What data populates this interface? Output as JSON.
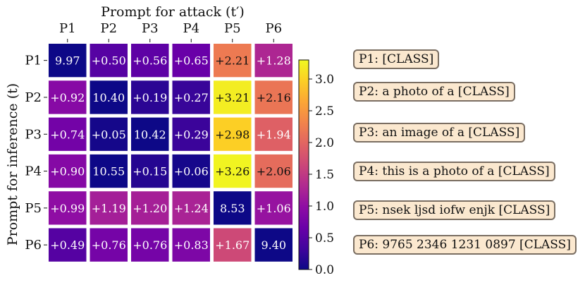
{
  "chart_data": {
    "type": "heatmap",
    "xlabel": "Prompt for attack (t′)",
    "ylabel": "Prompt for inference (t)",
    "columns": [
      "P1",
      "P2",
      "P3",
      "P4",
      "P5",
      "P6"
    ],
    "rows": [
      "P1",
      "P2",
      "P3",
      "P4",
      "P5",
      "P6"
    ],
    "values": [
      [
        9.97,
        0.5,
        0.56,
        0.65,
        2.21,
        1.28
      ],
      [
        0.92,
        10.4,
        0.19,
        0.27,
        3.21,
        2.16
      ],
      [
        0.74,
        0.05,
        10.42,
        0.29,
        2.98,
        1.94
      ],
      [
        0.9,
        10.55,
        0.15,
        0.06,
        3.26,
        2.06
      ],
      [
        0.99,
        1.19,
        1.2,
        1.24,
        8.53,
        1.06
      ],
      [
        0.49,
        0.76,
        0.76,
        0.83,
        1.67,
        9.4
      ]
    ],
    "labels": [
      [
        "9.97",
        "+0.50",
        "+0.56",
        "+0.65",
        "+2.21",
        "+1.28"
      ],
      [
        "+0.92",
        "10.40",
        "+0.19",
        "+0.27",
        "+3.21",
        "+2.16"
      ],
      [
        "+0.74",
        "+0.05",
        "10.42",
        "+0.29",
        "+2.98",
        "+1.94"
      ],
      [
        "+0.90",
        "10.55",
        "+0.15",
        "+0.06",
        "+3.26",
        "+2.06"
      ],
      [
        "+0.99",
        "+1.19",
        "+1.20",
        "+1.24",
        "8.53",
        "+1.06"
      ],
      [
        "+0.49",
        "+0.76",
        "+0.76",
        "+0.83",
        "+1.67",
        "9.40"
      ]
    ],
    "diagonal_cells": [
      [
        0,
        0
      ],
      [
        1,
        1
      ],
      [
        2,
        2
      ],
      [
        3,
        1
      ],
      [
        4,
        4
      ],
      [
        5,
        5
      ]
    ],
    "colorbar": {
      "colormap": "plasma",
      "range": [
        0.0,
        3.3
      ],
      "ticks": [
        0.0,
        0.5,
        1.0,
        1.5,
        2.0,
        2.5,
        3.0
      ],
      "tick_labels": [
        "0.0",
        "0.5",
        "1.0",
        "1.5",
        "2.0",
        "2.5",
        "3.0"
      ]
    },
    "legend": [
      "P1: [CLASS]",
      "P2: a photo of a [CLASS]",
      "P3: an image of a [CLASS]",
      "P4: this is a photo of a [CLASS]",
      "P5: nsek ljsd iofw enjk [CLASS]",
      "P6: 9765 2346 1231 0897 [CLASS]"
    ]
  }
}
